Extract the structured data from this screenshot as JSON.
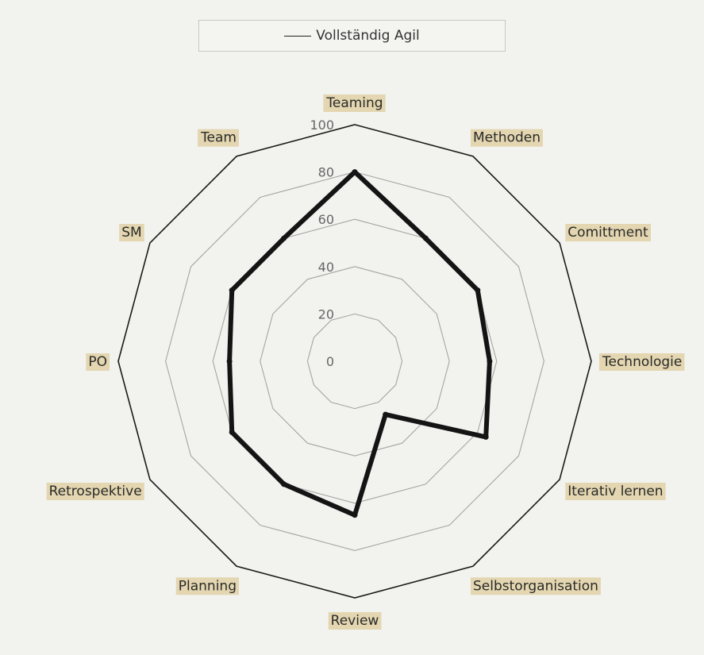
{
  "chart_data": {
    "type": "radar",
    "legend": [
      {
        "label": "Vollständig Agil"
      }
    ],
    "categories": [
      "Teaming",
      "Methoden",
      "Comittment",
      "Technologie",
      "Iterativ lernen",
      "Selbstorganisation",
      "Review",
      "Planning",
      "Retrospektive",
      "PO",
      "SM",
      "Team"
    ],
    "series": [
      {
        "name": "Vollständig Agil",
        "values": [
          80,
          60,
          60,
          57,
          64,
          26,
          65,
          60,
          60,
          53,
          60,
          60
        ]
      }
    ],
    "r_ticks": [
      "0",
      "20",
      "40",
      "60",
      "80",
      "100"
    ],
    "r_range": [
      0,
      100
    ],
    "label_highlight_color": "#e3d6b0",
    "series_color": "#141414",
    "grid_color": "#a5a5a5",
    "outer_color": "#1a1a1a"
  }
}
